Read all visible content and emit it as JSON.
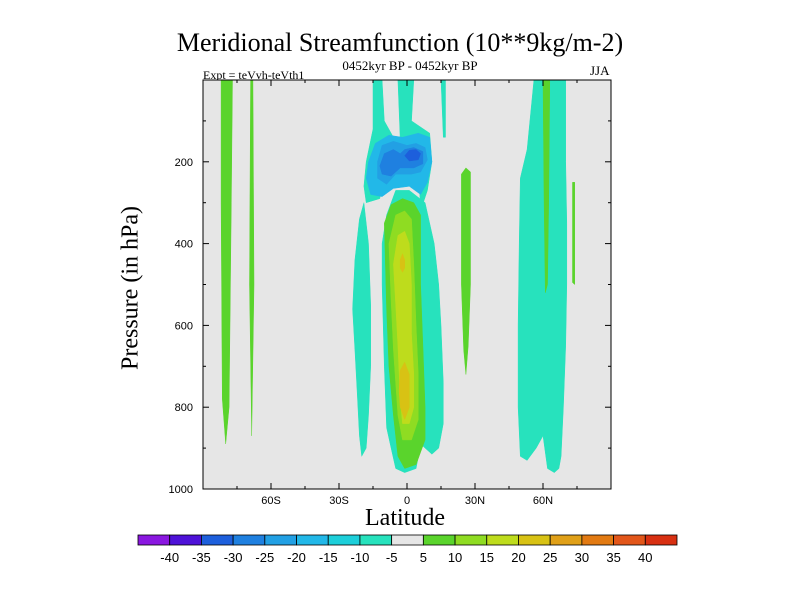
{
  "chart_data": {
    "type": "heatmap",
    "title": "Meridional Streamfunction (10**9kg/m-2)",
    "subtitle": "0452kyr BP - 0452kyr BP",
    "left_label": "Expt = teVvh-teVth1",
    "right_label": "JJA",
    "xlabel": "Latitude",
    "ylabel": "Pressure (in hPa)",
    "xlim": [
      -90,
      90
    ],
    "ylim": [
      1000,
      0
    ],
    "x_ticks": [
      {
        "value": -60,
        "label": "60S"
      },
      {
        "value": -30,
        "label": "30S"
      },
      {
        "value": 0,
        "label": "0"
      },
      {
        "value": 30,
        "label": "30N"
      },
      {
        "value": 60,
        "label": "60N"
      }
    ],
    "y_ticks": [
      200,
      400,
      600,
      800,
      1000
    ],
    "background_color": "#e6e6e6",
    "colorbar": {
      "levels": [
        -40,
        -35,
        -30,
        -25,
        -20,
        -15,
        -10,
        -5,
        5,
        10,
        15,
        20,
        25,
        30,
        35,
        40
      ],
      "colors": [
        "#8a17e0",
        "#4e12d8",
        "#1d5fdc",
        "#1f80e0",
        "#22a0e4",
        "#22b8e8",
        "#1dcfda",
        "#27e2bd",
        "#e6e6e6",
        "#5ad42c",
        "#8fdc22",
        "#bedc1c",
        "#d8c214",
        "#e0a018",
        "#e27a12",
        "#e2561a",
        "#d83012"
      ]
    },
    "contour_regions": [
      {
        "level": "5 to 10",
        "color": "#5ad42c",
        "points": [
          [
            -82,
            0
          ],
          [
            -77,
            0
          ],
          [
            -77.5,
            300
          ],
          [
            -78.5,
            800
          ],
          [
            -80,
            890
          ],
          [
            -81.5,
            780
          ],
          [
            -82,
            300
          ]
        ]
      },
      {
        "level": "5 to 10",
        "color": "#5ad42c",
        "points": [
          [
            -69,
            0
          ],
          [
            -68,
            0
          ],
          [
            -67.5,
            500
          ],
          [
            -68.5,
            870
          ],
          [
            -69.5,
            500
          ]
        ]
      },
      {
        "level": "-10 to -5",
        "color": "#27e2bd",
        "points": [
          [
            -15,
            0
          ],
          [
            -11,
            0
          ],
          [
            -10,
            100
          ],
          [
            -6,
            140
          ],
          [
            -3,
            145
          ],
          [
            -4,
            0
          ],
          [
            3,
            0
          ],
          [
            2,
            100
          ],
          [
            10,
            130
          ],
          [
            11,
            200
          ],
          [
            9,
            270
          ],
          [
            6,
            320
          ],
          [
            5,
            200
          ],
          [
            -2,
            150
          ],
          [
            -9,
            200
          ],
          [
            -12,
            290
          ],
          [
            -18,
            300
          ],
          [
            -19,
            260
          ],
          [
            -18,
            200
          ],
          [
            -15,
            120
          ]
        ]
      },
      {
        "level": "-15 to -10",
        "color": "#22b8e8",
        "points": [
          [
            -17,
            200
          ],
          [
            -14,
            155
          ],
          [
            -8,
            135
          ],
          [
            -2,
            140
          ],
          [
            5,
            130
          ],
          [
            10,
            140
          ],
          [
            11,
            200
          ],
          [
            9,
            250
          ],
          [
            6,
            280
          ],
          [
            1,
            260
          ],
          [
            -6,
            265
          ],
          [
            -11,
            285
          ],
          [
            -16,
            280
          ],
          [
            -18,
            240
          ]
        ]
      },
      {
        "level": "-20 to -15",
        "color": "#22a0e4",
        "points": [
          [
            -13,
            200
          ],
          [
            -11,
            160
          ],
          [
            -6,
            150
          ],
          [
            0,
            160
          ],
          [
            4,
            155
          ],
          [
            8,
            165
          ],
          [
            9,
            195
          ],
          [
            6,
            225
          ],
          [
            2,
            230
          ],
          [
            -5,
            230
          ],
          [
            -9,
            255
          ],
          [
            -13,
            240
          ]
        ]
      },
      {
        "level": "-25 to -20",
        "color": "#1f80e0",
        "points": [
          [
            -12,
            210
          ],
          [
            -10,
            180
          ],
          [
            -6,
            170
          ],
          [
            -3,
            180
          ],
          [
            -1,
            170
          ],
          [
            3,
            165
          ],
          [
            7,
            175
          ],
          [
            7,
            205
          ],
          [
            3,
            215
          ],
          [
            -3,
            215
          ],
          [
            -7,
            235
          ],
          [
            -11,
            230
          ]
        ]
      },
      {
        "level": "-30 to -25",
        "color": "#1d5fdc",
        "points": [
          [
            -1,
            185
          ],
          [
            1,
            172
          ],
          [
            4,
            170
          ],
          [
            6,
            180
          ],
          [
            5,
            195
          ],
          [
            1,
            198
          ]
        ]
      },
      {
        "level": "-10 to -5",
        "color": "#27e2bd",
        "points": [
          [
            15,
            0
          ],
          [
            16,
            140
          ],
          [
            17,
            140
          ],
          [
            17,
            0
          ]
        ]
      },
      {
        "level": "-10 to -5",
        "color": "#27e2bd",
        "points": [
          [
            -24,
            560
          ],
          [
            -23,
            440
          ],
          [
            -21,
            340
          ],
          [
            -19,
            300
          ],
          [
            -17,
            400
          ],
          [
            -16,
            550
          ],
          [
            -16,
            700
          ],
          [
            -17,
            820
          ],
          [
            -18,
            900
          ],
          [
            -20,
            920
          ],
          [
            -21,
            870
          ],
          [
            -22,
            760
          ],
          [
            -23,
            660
          ]
        ]
      },
      {
        "level": "-10 to -5",
        "color": "#27e2bd",
        "points": [
          [
            -9,
            330
          ],
          [
            -5,
            270
          ],
          [
            1,
            270
          ],
          [
            8,
            300
          ],
          [
            12,
            400
          ],
          [
            14,
            500
          ],
          [
            15,
            600
          ],
          [
            16,
            740
          ],
          [
            16,
            840
          ],
          [
            14,
            900
          ],
          [
            11,
            915
          ],
          [
            6,
            890
          ],
          [
            4,
            950
          ],
          [
            -1,
            960
          ],
          [
            -5,
            950
          ],
          [
            -7,
            900
          ],
          [
            -9,
            850
          ],
          [
            -10,
            700
          ],
          [
            -11,
            500
          ],
          [
            -11,
            400
          ]
        ]
      },
      {
        "level": "5 to 10",
        "color": "#5ad42c",
        "points": [
          [
            -10,
            350
          ],
          [
            -7,
            305
          ],
          [
            -2,
            290
          ],
          [
            3,
            300
          ],
          [
            6,
            330
          ],
          [
            6,
            500
          ],
          [
            7,
            650
          ],
          [
            8,
            800
          ],
          [
            8,
            880
          ],
          [
            4,
            940
          ],
          [
            -1,
            950
          ],
          [
            -4,
            920
          ],
          [
            -6,
            820
          ],
          [
            -8,
            700
          ],
          [
            -9,
            560
          ]
        ]
      },
      {
        "level": "10 to 15",
        "color": "#8fdc22",
        "points": [
          [
            -8,
            400
          ],
          [
            -5,
            330
          ],
          [
            -1,
            320
          ],
          [
            2,
            340
          ],
          [
            3,
            450
          ],
          [
            4,
            600
          ],
          [
            5,
            720
          ],
          [
            5,
            830
          ],
          [
            2,
            880
          ],
          [
            -2,
            880
          ],
          [
            -4,
            820
          ],
          [
            -6,
            660
          ],
          [
            -7,
            540
          ]
        ]
      },
      {
        "level": "15 to 20",
        "color": "#bedc1c",
        "points": [
          [
            -6,
            450
          ],
          [
            -4,
            380
          ],
          [
            -1,
            370
          ],
          [
            1,
            400
          ],
          [
            2,
            500
          ],
          [
            2,
            620
          ],
          [
            3,
            720
          ],
          [
            3,
            800
          ],
          [
            1,
            840
          ],
          [
            -2,
            840
          ],
          [
            -3,
            780
          ],
          [
            -4,
            650
          ],
          [
            -5,
            550
          ]
        ]
      },
      {
        "level": "20 to 25",
        "color": "#d8c214",
        "points": [
          [
            -3,
            440
          ],
          [
            -2,
            425
          ],
          [
            -1,
            440
          ],
          [
            -1,
            460
          ],
          [
            -2,
            470
          ],
          [
            -3,
            460
          ]
        ]
      },
      {
        "level": "20 to 25",
        "color": "#d8c214",
        "points": [
          [
            -3,
            710
          ],
          [
            -1,
            690
          ],
          [
            1,
            720
          ],
          [
            1,
            800
          ],
          [
            -1,
            830
          ],
          [
            -3,
            800
          ],
          [
            -3.5,
            760
          ]
        ]
      },
      {
        "level": "5 to 10",
        "color": "#5ad42c",
        "points": [
          [
            24,
            230
          ],
          [
            26,
            215
          ],
          [
            28,
            225
          ],
          [
            28,
            500
          ],
          [
            27,
            650
          ],
          [
            26,
            720
          ],
          [
            25,
            660
          ],
          [
            24,
            500
          ]
        ]
      },
      {
        "level": "-10 to -5",
        "color": "#27e2bd",
        "points": [
          [
            50,
            240
          ],
          [
            53,
            170
          ],
          [
            56,
            0
          ],
          [
            70,
            0
          ],
          [
            70,
            200
          ],
          [
            70.5,
            350
          ],
          [
            70.5,
            500
          ],
          [
            70,
            650
          ],
          [
            69,
            800
          ],
          [
            68,
            920
          ],
          [
            67,
            950
          ],
          [
            65,
            960
          ],
          [
            62,
            950
          ],
          [
            60,
            870
          ],
          [
            57,
            900
          ],
          [
            53,
            930
          ],
          [
            50,
            920
          ],
          [
            49,
            800
          ],
          [
            49,
            600
          ],
          [
            49.5,
            400
          ]
        ]
      },
      {
        "level": "5 to 10",
        "color": "#5ad42c",
        "points": [
          [
            60,
            0
          ],
          [
            63,
            0
          ],
          [
            62.5,
            300
          ],
          [
            62,
            500
          ],
          [
            61,
            520
          ],
          [
            60.5,
            300
          ]
        ]
      },
      {
        "level": "5 to 10",
        "color": "#5ad42c",
        "points": [
          [
            73,
            250
          ],
          [
            74,
            250
          ],
          [
            74,
            500
          ],
          [
            73,
            495
          ]
        ]
      }
    ]
  }
}
